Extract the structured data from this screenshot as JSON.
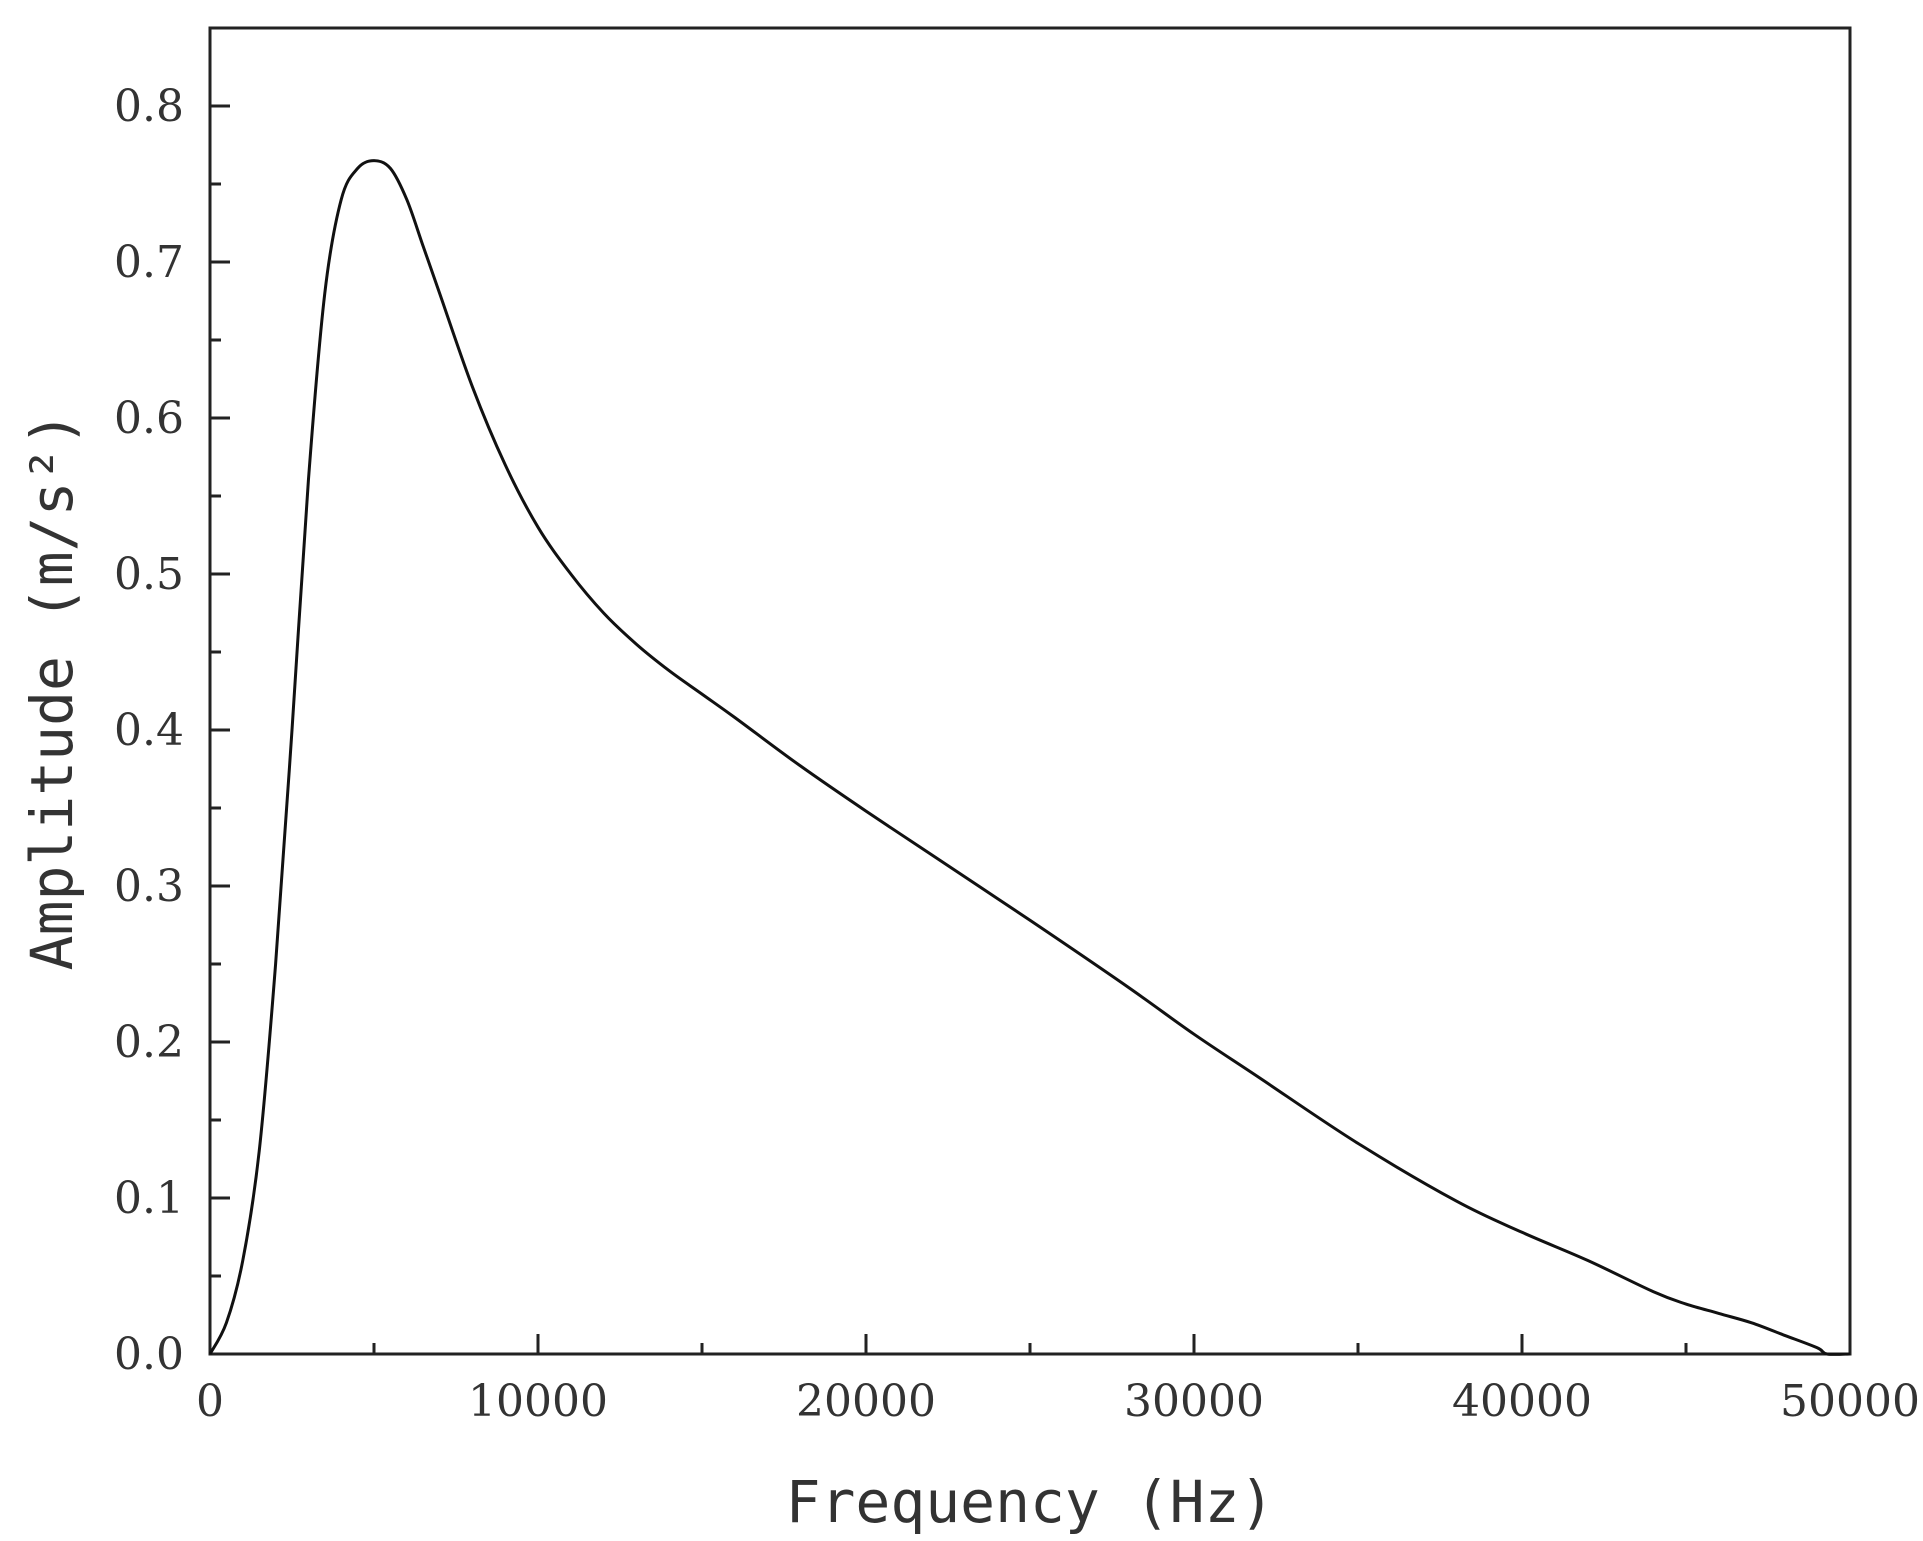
{
  "chart_data": {
    "type": "line",
    "title": "",
    "xlabel": "Frequency (Hz)",
    "ylabel": "Amplitude (m/s²)",
    "xlim": [
      0,
      50000
    ],
    "ylim": [
      0,
      0.85
    ],
    "x_ticks": [
      0,
      10000,
      20000,
      30000,
      40000,
      50000
    ],
    "x_tick_labels": [
      "0",
      "10000",
      "20000",
      "30000",
      "40000",
      "50000"
    ],
    "x_minor_ticks": [
      5000,
      15000,
      25000,
      35000,
      45000
    ],
    "y_ticks": [
      0,
      0.1,
      0.2,
      0.3,
      0.4,
      0.5,
      0.6,
      0.7,
      0.8
    ],
    "y_tick_labels": [
      "0.0",
      "0.1",
      "0.2",
      "0.3",
      "0.4",
      "0.5",
      "0.6",
      "0.7",
      "0.8"
    ],
    "y_minor_ticks": [
      0.05,
      0.15,
      0.25,
      0.35,
      0.45,
      0.55,
      0.65,
      0.75
    ],
    "grid": false,
    "legend": "none",
    "series": [
      {
        "color": "#111111",
        "x": [
          0,
          500,
          1000,
          1500,
          2000,
          2500,
          3000,
          3500,
          4000,
          4500,
          5000,
          5500,
          6000,
          6500,
          7000,
          8000,
          9000,
          10000,
          11000,
          12000,
          13000,
          14000,
          15000,
          16000,
          18000,
          20000,
          22000,
          25000,
          28000,
          30000,
          32000,
          35000,
          38000,
          40000,
          42000,
          44000,
          45000,
          46000,
          47000,
          48000,
          49000,
          49300,
          50000
        ],
        "y": [
          0.0,
          0.02,
          0.06,
          0.13,
          0.25,
          0.4,
          0.56,
          0.68,
          0.74,
          0.76,
          0.765,
          0.76,
          0.74,
          0.71,
          0.68,
          0.62,
          0.57,
          0.53,
          0.5,
          0.475,
          0.455,
          0.438,
          0.423,
          0.408,
          0.377,
          0.348,
          0.32,
          0.278,
          0.235,
          0.205,
          0.177,
          0.135,
          0.098,
          0.078,
          0.06,
          0.04,
          0.032,
          0.026,
          0.02,
          0.012,
          0.004,
          0.0,
          0.0
        ]
      }
    ]
  }
}
